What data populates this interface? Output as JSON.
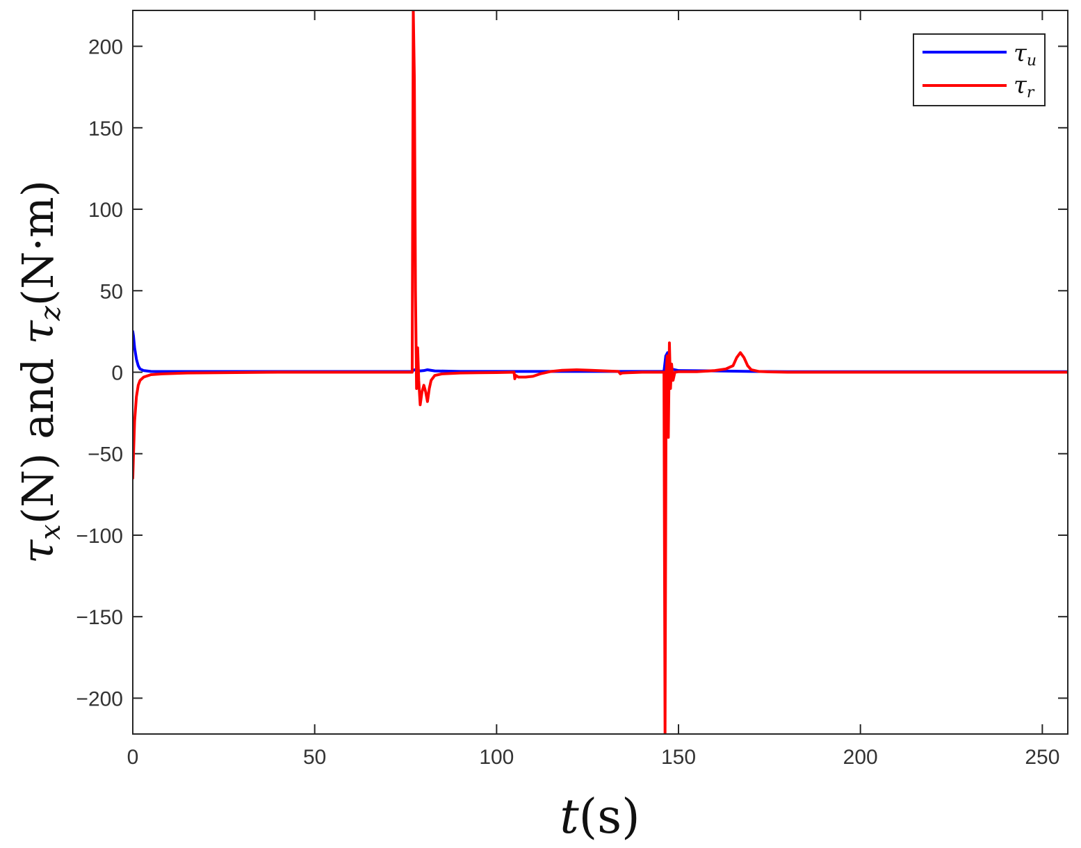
{
  "chart_data": {
    "type": "line",
    "title": "",
    "xlabel_main": "t",
    "xlabel_unit": "(s)",
    "ylabel_parts": {
      "tau_x": "τ",
      "sub_x": "x",
      "n_unit": "(N)",
      "and": " and ",
      "tau_z": "τ",
      "sub_z": "z",
      "nm_unit": "(N·m)"
    },
    "xlim": [
      0,
      257
    ],
    "ylim": [
      -222,
      222
    ],
    "xticks": [
      0,
      50,
      100,
      150,
      200,
      250
    ],
    "xtick_labels": [
      "0",
      "50",
      "100",
      "150",
      "200",
      "250"
    ],
    "yticks": [
      -200,
      -150,
      -100,
      -50,
      0,
      50,
      100,
      150,
      200
    ],
    "ytick_labels": [
      "−200",
      "−150",
      "−100",
      "−50",
      "0",
      "50",
      "100",
      "150",
      "200"
    ],
    "grid": false,
    "legend": {
      "placement": "top-right"
    },
    "series": [
      {
        "name": "τu",
        "legend_symbol": "τ",
        "legend_sub": "u",
        "color": "#0000ff",
        "x": [
          0,
          0.2,
          0.5,
          1,
          1.5,
          2,
          3,
          5,
          10,
          50,
          76.5,
          77,
          77.5,
          78,
          79,
          80,
          81,
          83,
          90,
          100,
          110,
          120,
          130,
          140,
          146,
          146.5,
          147,
          147.5,
          148,
          150,
          160,
          170,
          180,
          200,
          257
        ],
        "y": [
          25,
          22,
          15,
          8,
          4,
          2,
          1,
          0.5,
          0.4,
          0.4,
          0.4,
          1,
          1.5,
          1.2,
          0.8,
          1,
          1.5,
          0.8,
          0.5,
          0.5,
          0.5,
          0.5,
          0.5,
          0.5,
          0.5,
          10,
          12,
          6,
          2,
          1,
          0.8,
          0.5,
          0.3,
          0.3,
          0.3
        ]
      },
      {
        "name": "τr",
        "legend_symbol": "τ",
        "legend_sub": "r",
        "color": "#ff0000",
        "x": [
          0,
          0.2,
          0.5,
          1,
          1.5,
          2,
          3,
          5,
          8,
          15,
          40,
          76.8,
          77.1,
          77.4,
          77.7,
          78.0,
          78.3,
          78.6,
          79.0,
          79.5,
          80,
          80.5,
          81,
          81.5,
          82,
          83,
          85,
          90,
          95,
          100,
          104.8,
          105,
          105.3,
          106,
          108,
          110,
          112,
          115,
          118,
          122,
          126,
          130,
          133.5,
          134,
          134.5,
          136,
          140,
          145,
          146,
          146.3,
          146.6,
          146.9,
          147.2,
          147.5,
          147.8,
          148.1,
          148.5,
          149,
          150,
          155,
          160,
          163,
          165,
          166,
          167,
          168,
          169,
          170,
          172,
          175,
          180,
          190,
          200,
          220,
          257
        ],
        "y": [
          -65,
          -50,
          -30,
          -15,
          -8,
          -5,
          -3,
          -1.5,
          -1,
          -0.5,
          0,
          0,
          222,
          180,
          50,
          -10,
          15,
          -5,
          -20,
          -12,
          -8,
          -12,
          -18,
          -10,
          -5,
          -2,
          -1,
          -0.5,
          -0.3,
          -0.2,
          0,
          -4,
          -2,
          -3,
          -3,
          -2.5,
          -1,
          0.5,
          1.2,
          1.5,
          1.2,
          0.8,
          0.5,
          -1,
          -0.5,
          -0.3,
          0,
          0,
          0,
          -222,
          0,
          10,
          -40,
          18,
          -10,
          5,
          -5,
          0,
          0.3,
          0.3,
          1,
          2,
          4,
          9,
          12,
          9,
          4,
          1.5,
          0.5,
          0.2,
          0,
          0,
          0,
          0,
          0
        ]
      }
    ]
  }
}
